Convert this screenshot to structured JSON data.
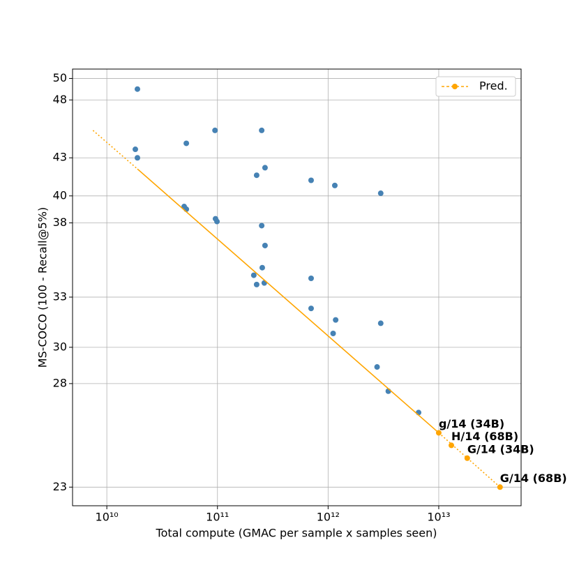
{
  "chart_data": {
    "type": "scatter",
    "xlabel": "Total compute (GMAC per sample x samples seen)",
    "ylabel": "MS-COCO (100 - Recall@5%)",
    "xscale": "log",
    "yscale": "log",
    "xlim": [
      4900000000,
      55500000000000
    ],
    "ylim": [
      22.2,
      50.9
    ],
    "xticks": [
      {
        "value": 10000000000,
        "label": "10¹⁰"
      },
      {
        "value": 100000000000,
        "label": "10¹¹"
      },
      {
        "value": 1000000000000,
        "label": "10¹²"
      },
      {
        "value": 10000000000000,
        "label": "10¹³"
      }
    ],
    "yticks": [
      23,
      28,
      30,
      33,
      38,
      40,
      43,
      48,
      50
    ],
    "grid": true,
    "legend": "upper right",
    "points": {
      "color": "#4682b4",
      "x": [
        18900000000,
        18100000000,
        18900000000,
        52300000000,
        95000000000,
        251000000000,
        269000000000,
        226000000000,
        702000000000,
        1150000000000,
        2990000000000,
        50000000000,
        52300000000,
        96000000000,
        99000000000,
        251000000000,
        269000000000,
        254000000000,
        213000000000,
        226000000000,
        265000000000,
        702000000000,
        702000000000,
        1170000000000,
        1110000000000,
        2990000000000,
        2770000000000,
        3500000000000,
        6570000000000
      ],
      "values": [
        49.0,
        43.7,
        43.0,
        44.2,
        45.3,
        45.3,
        42.2,
        41.6,
        41.2,
        40.8,
        40.2,
        39.2,
        39.0,
        38.3,
        38.1,
        37.8,
        36.4,
        34.9,
        34.4,
        33.8,
        33.9,
        34.2,
        32.3,
        31.6,
        30.8,
        31.4,
        28.9,
        27.6,
        26.5
      ]
    },
    "fit": {
      "color": "#ffa500",
      "x": [
        7500000000,
        18900000000,
        10000000000000,
        35800000000000
      ],
      "values": [
        45.3,
        42.1,
        25.5,
        23.0
      ],
      "segment_styles": [
        "dotted",
        "solid",
        "dotted"
      ]
    },
    "series": [
      {
        "name": "Pred.",
        "color": "#ffa500",
        "x": [
          10000000000000,
          13000000000000,
          18100000000000,
          35800000000000
        ],
        "values": [
          25.5,
          24.9,
          24.3,
          23.0
        ],
        "point_labels": [
          "g/14 (34B)",
          "H/14 (68B)",
          "G/14 (34B)",
          "G/14 (68B)"
        ]
      }
    ]
  }
}
